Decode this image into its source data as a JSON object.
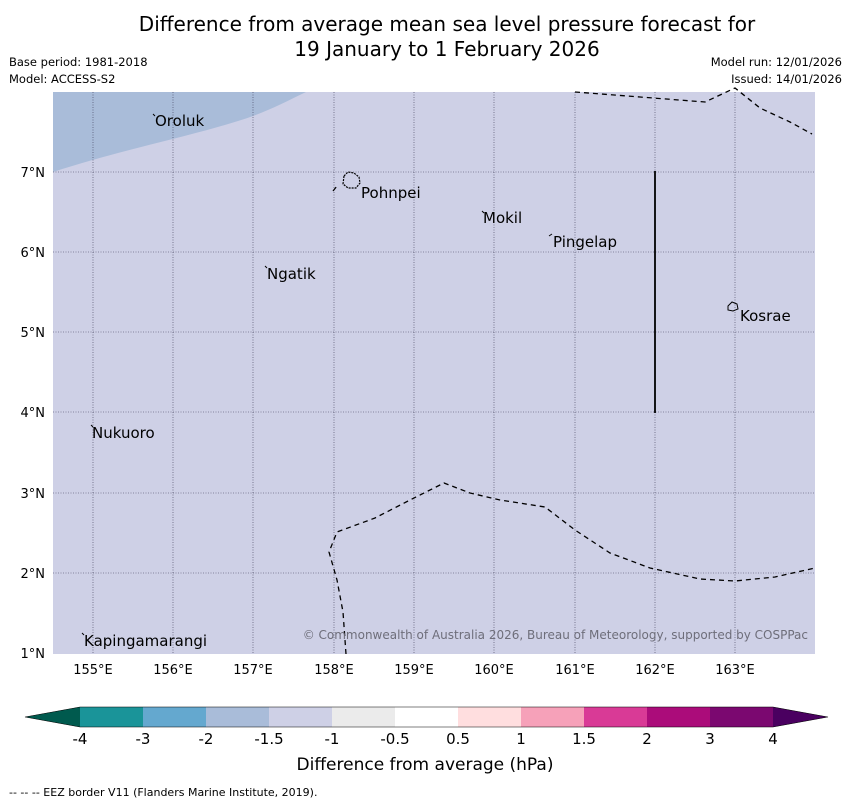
{
  "title": {
    "line1": "Difference from average mean sea level pressure forecast for",
    "line2": "19 January to 1 February 2026"
  },
  "meta": {
    "base_period": "Base period: 1981-2018",
    "model": "Model: ACCESS-S2",
    "model_run": "Model run: 12/01/2026",
    "issued": "Issued: 14/01/2026"
  },
  "axes": {
    "lon_labels": [
      "155°E",
      "156°E",
      "157°E",
      "158°E",
      "159°E",
      "160°E",
      "161°E",
      "162°E",
      "163°E"
    ],
    "lat_labels": [
      "7°N",
      "6°N",
      "5°N",
      "4°N",
      "3°N",
      "2°N",
      "1°N"
    ]
  },
  "places": {
    "oroluk": "Oroluk",
    "pohnpei": "Pohnpei",
    "mokil": "Mokil",
    "pingelap": "Pingelap",
    "ngatik": "Ngatik",
    "kosrae": "Kosrae",
    "nukuoro": "Nukuoro",
    "kapingamarangi": "Kapingamarangi"
  },
  "colorbar": {
    "title": "Difference from average (hPa)",
    "tick_labels": [
      "-4",
      "-3",
      "-2",
      "-1.5",
      "-1",
      "-0.5",
      "0.5",
      "1",
      "1.5",
      "2",
      "3",
      "4"
    ],
    "colors": [
      "#005a4e",
      "#1a9499",
      "#64a8cf",
      "#a9bcd9",
      "#ced0e6",
      "#ebebeb",
      "#ffffff",
      "#ffdedf",
      "#f6a1b9",
      "#d93a96",
      "#ab0c7a",
      "#7b0870",
      "#4a0060"
    ]
  },
  "map_colors": {
    "main_fill": "#ced0e6",
    "anomaly_fill": "#a9bcd9"
  },
  "copyright": "© Commonwealth of Australia 2026, Bureau of Meteorology, supported by COSPPac",
  "legend_note": "--  --  -- EEZ border V11 (Flanders Marine Institute, 2019)."
}
